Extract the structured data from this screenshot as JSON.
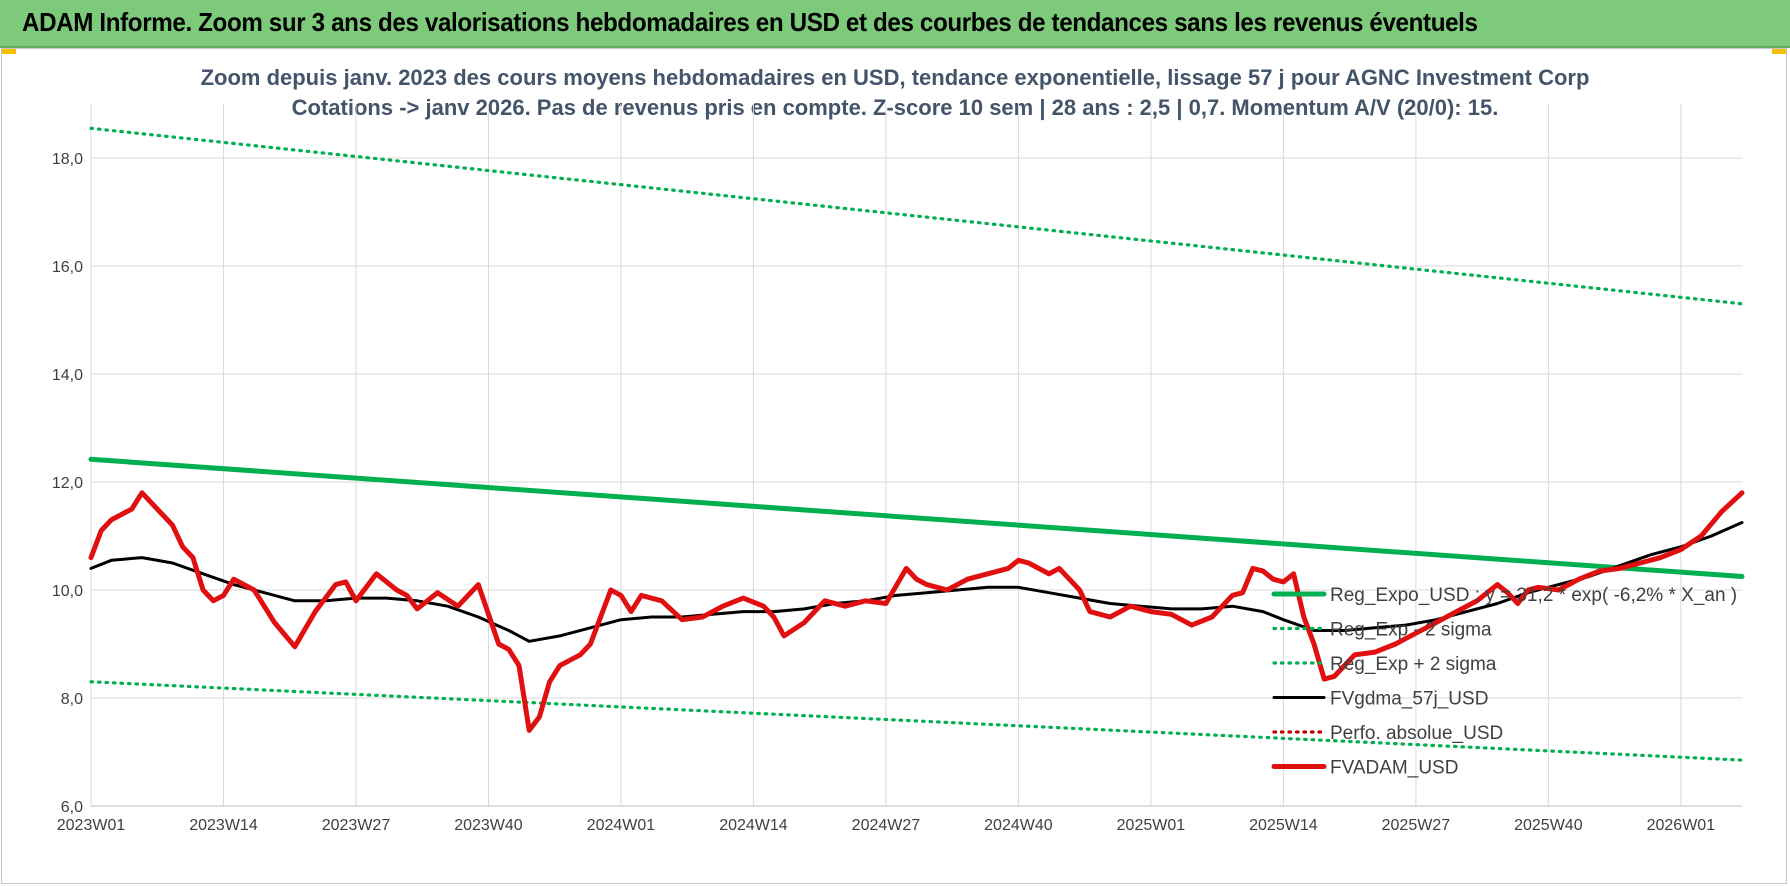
{
  "banner": {
    "title": "ADAM Informe. Zoom sur 3 ans des valorisations hebdomadaires en USD et des courbes de tendances sans les revenus éventuels"
  },
  "colors": {
    "banner_bg": "#7dcb7a",
    "reg_expo": "#00b050",
    "sigma": "#00b050",
    "fvgdma": "#000000",
    "perfo": "#c00000",
    "fvadam": "#e01010",
    "grid": "#d9d9d9"
  },
  "chart_data": {
    "type": "line",
    "title_line1": "Zoom depuis janv. 2023 des cours moyens hebdomadaires en USD, tendance exponentielle, lissage 57 j pour AGNC Investment Corp",
    "title_line2": "Cotations -> janv 2026. Pas de revenus pris en compte. Z-score 10 sem | 28 ans : 2,5 | 0,7. Momentum A/V (20/0): 15.",
    "ylim": [
      6,
      19
    ],
    "y_ticks": [
      "6,0",
      "8,0",
      "10,0",
      "12,0",
      "14,0",
      "16,0",
      "18,0"
    ],
    "y_tick_values": [
      6,
      8,
      10,
      12,
      14,
      16,
      18
    ],
    "x_ticks": [
      "2023W01",
      "2023W14",
      "2023W27",
      "2023W40",
      "2024W01",
      "2024W14",
      "2024W27",
      "2024W40",
      "2025W01",
      "2025W14",
      "2025W27",
      "2025W40",
      "2026W01"
    ],
    "x_tick_weeks": [
      0,
      13,
      26,
      39,
      52,
      65,
      78,
      91,
      104,
      117,
      130,
      143,
      156
    ],
    "x_last_week": 162,
    "grid": true,
    "legend_position": "bottom-right",
    "series": [
      {
        "name": "Reg_Expo_USD : y = 31,2 * exp( -6,2% *  X_an )",
        "style": "solid-thick",
        "color_key": "reg_expo",
        "x": [
          0,
          162
        ],
        "y": [
          12.42,
          10.25
        ]
      },
      {
        "name": "Reg_Exp - 2 sigma",
        "style": "dotted",
        "color_key": "sigma",
        "x": [
          0,
          162
        ],
        "y": [
          8.3,
          6.85
        ]
      },
      {
        "name": "Reg_Exp + 2 sigma",
        "style": "dotted",
        "color_key": "sigma",
        "x": [
          0,
          162
        ],
        "y": [
          18.55,
          15.3
        ]
      },
      {
        "name": "FVgdma_57j_USD",
        "style": "solid",
        "color_key": "fvgdma",
        "x": [
          0,
          2,
          5,
          8,
          11,
          14,
          17,
          20,
          23,
          26,
          29,
          32,
          35,
          38,
          41,
          43,
          46,
          49,
          52,
          55,
          58,
          61,
          64,
          67,
          70,
          73,
          76,
          79,
          82,
          85,
          88,
          91,
          94,
          97,
          100,
          103,
          106,
          109,
          112,
          115,
          117,
          120,
          123,
          126,
          129,
          132,
          135,
          138,
          141,
          144,
          147,
          150,
          153,
          156,
          159,
          162
        ],
        "y": [
          10.4,
          10.55,
          10.6,
          10.5,
          10.3,
          10.1,
          9.95,
          9.8,
          9.8,
          9.85,
          9.85,
          9.8,
          9.7,
          9.5,
          9.25,
          9.05,
          9.15,
          9.3,
          9.45,
          9.5,
          9.5,
          9.55,
          9.6,
          9.6,
          9.65,
          9.75,
          9.8,
          9.9,
          9.95,
          10.0,
          10.05,
          10.05,
          9.95,
          9.85,
          9.75,
          9.7,
          9.65,
          9.65,
          9.7,
          9.6,
          9.45,
          9.25,
          9.25,
          9.3,
          9.35,
          9.45,
          9.6,
          9.75,
          9.95,
          10.1,
          10.25,
          10.45,
          10.65,
          10.8,
          11.0,
          11.25
        ]
      },
      {
        "name": "Perfo. absolue_USD",
        "style": "dotted",
        "color_key": "perfo",
        "x": [],
        "y": []
      },
      {
        "name": "FVADAM_USD",
        "style": "solid-thick",
        "color_key": "fvadam",
        "x": [
          0,
          1,
          2,
          4,
          5,
          6,
          7,
          8,
          9,
          10,
          11,
          12,
          13,
          14,
          16,
          18,
          20,
          22,
          24,
          25,
          26,
          28,
          30,
          31,
          32,
          34,
          36,
          38,
          40,
          41,
          42,
          43,
          44,
          45,
          46,
          47,
          48,
          49,
          50,
          51,
          52,
          53,
          54,
          56,
          58,
          60,
          62,
          64,
          66,
          67,
          68,
          70,
          72,
          74,
          76,
          78,
          80,
          81,
          82,
          84,
          86,
          88,
          90,
          91,
          92,
          94,
          95,
          96,
          97,
          98,
          100,
          102,
          104,
          106,
          108,
          110,
          111,
          112,
          113,
          114,
          115,
          116,
          117,
          118,
          119,
          120,
          121,
          122,
          124,
          126,
          128,
          130,
          132,
          134,
          136,
          138,
          139,
          140,
          141,
          142,
          144,
          146,
          148,
          150,
          152,
          154,
          156,
          158,
          160,
          162
        ],
        "y": [
          10.6,
          11.1,
          11.3,
          11.5,
          11.8,
          11.6,
          11.4,
          11.2,
          10.8,
          10.6,
          10.0,
          9.8,
          9.9,
          10.2,
          10.0,
          9.4,
          8.95,
          9.6,
          10.1,
          10.15,
          9.8,
          10.3,
          10.0,
          9.9,
          9.65,
          9.95,
          9.7,
          10.1,
          9.0,
          8.9,
          8.6,
          7.4,
          7.65,
          8.3,
          8.6,
          8.7,
          8.8,
          9.0,
          9.5,
          10.0,
          9.9,
          9.6,
          9.9,
          9.8,
          9.45,
          9.5,
          9.7,
          9.85,
          9.7,
          9.5,
          9.15,
          9.4,
          9.8,
          9.7,
          9.8,
          9.75,
          10.4,
          10.2,
          10.1,
          10.0,
          10.2,
          10.3,
          10.4,
          10.55,
          10.5,
          10.3,
          10.4,
          10.2,
          10.0,
          9.6,
          9.5,
          9.7,
          9.6,
          9.55,
          9.35,
          9.5,
          9.7,
          9.9,
          9.95,
          10.4,
          10.35,
          10.2,
          10.15,
          10.3,
          9.5,
          9.0,
          8.35,
          8.4,
          8.8,
          8.85,
          9.0,
          9.2,
          9.4,
          9.6,
          9.8,
          10.1,
          9.95,
          9.75,
          10.0,
          10.05,
          10.0,
          10.2,
          10.35,
          10.4,
          10.5,
          10.6,
          10.75,
          11.0,
          11.45,
          11.8
        ]
      }
    ]
  }
}
